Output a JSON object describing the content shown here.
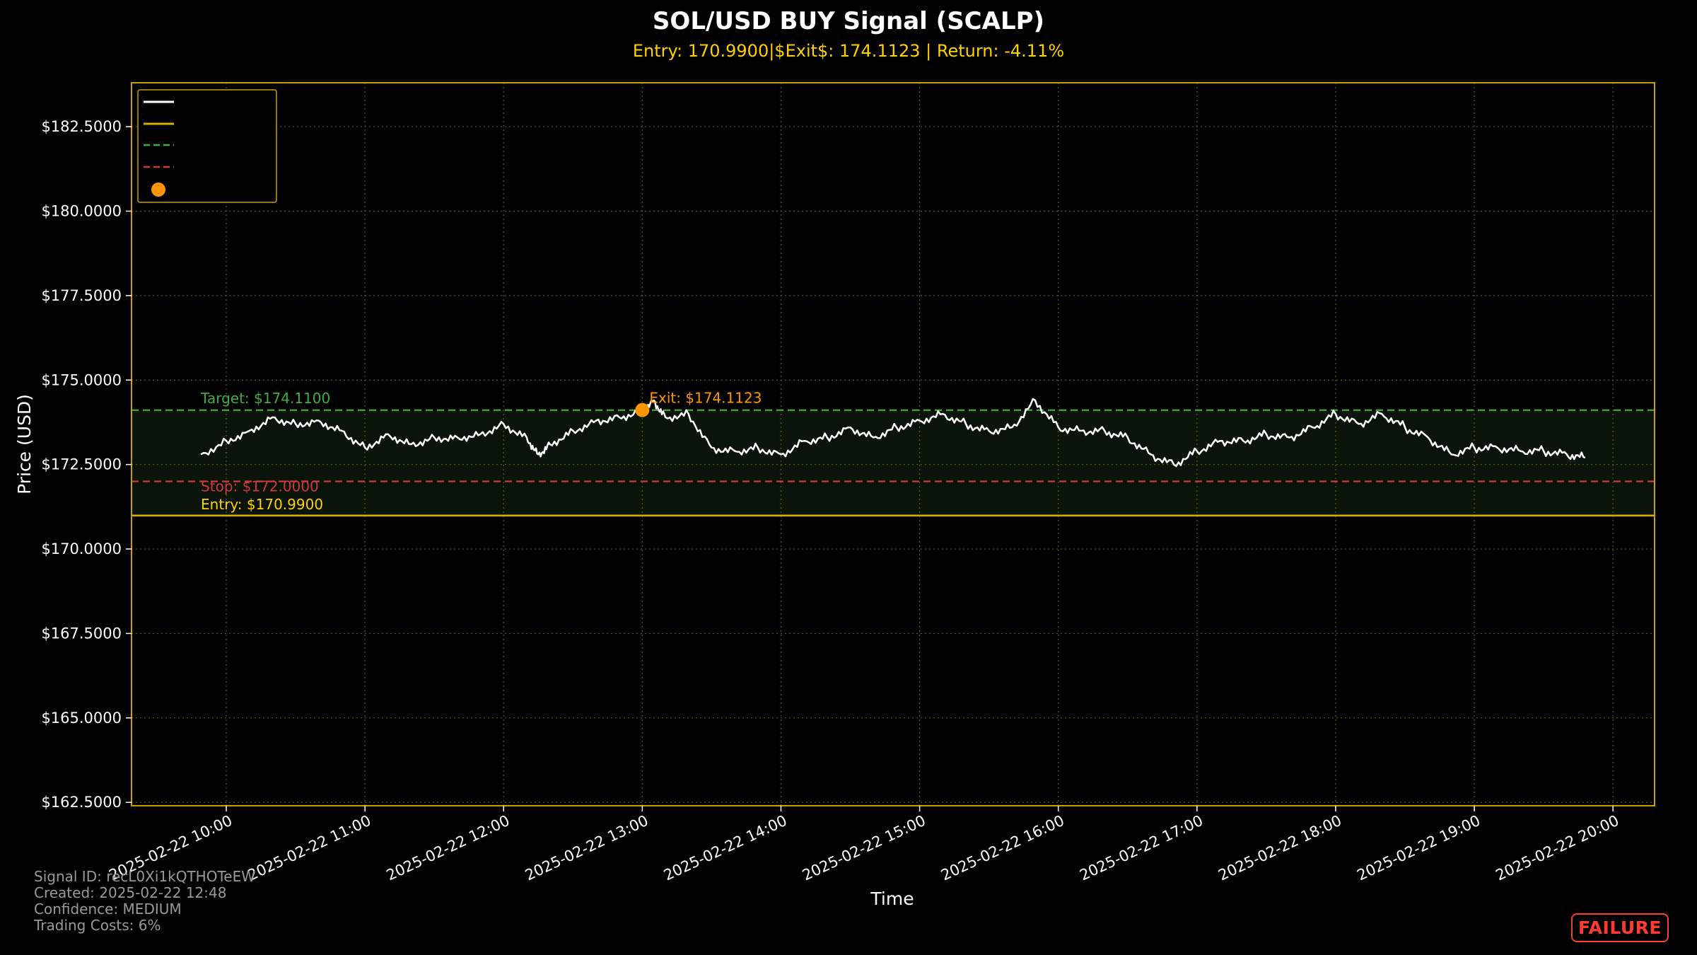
{
  "chart_data": {
    "type": "line",
    "title": "SOL/USD BUY Signal (SCALP)",
    "subtitle": "Entry: 170.9900|$Exit$: 174.1123 | Return: -4.11%",
    "xlabel": "Time",
    "ylabel": "Price (USD)",
    "ylim": [
      162.4,
      183.8
    ],
    "xlim": [
      "2025-02-22 09:19",
      "2025-02-22 20:18"
    ],
    "y_ticks": [
      162.5,
      165.0,
      167.5,
      170.0,
      172.5,
      175.0,
      177.5,
      180.0,
      182.5
    ],
    "y_tick_labels": [
      "$162.5000",
      "$165.0000",
      "$167.5000",
      "$170.0000",
      "$172.5000",
      "$175.0000",
      "$177.5000",
      "$180.0000",
      "$182.5000"
    ],
    "x_ticks": [
      "2025-02-22 10:00",
      "2025-02-22 11:00",
      "2025-02-22 12:00",
      "2025-02-22 13:00",
      "2025-02-22 14:00",
      "2025-02-22 15:00",
      "2025-02-22 16:00",
      "2025-02-22 17:00",
      "2025-02-22 18:00",
      "2025-02-22 19:00",
      "2025-02-22 20:00"
    ],
    "grid": true,
    "legend_position": "top-left",
    "series": [
      {
        "type": "line",
        "x": [
          "2025-02-22 09:49",
          "2025-02-22 10:00",
          "2025-02-22 10:10",
          "2025-02-22 10:20",
          "2025-02-22 10:30",
          "2025-02-22 10:40",
          "2025-02-22 10:50",
          "2025-02-22 11:00",
          "2025-02-22 11:10",
          "2025-02-22 11:20",
          "2025-02-22 11:30",
          "2025-02-22 11:40",
          "2025-02-22 11:50",
          "2025-02-22 12:00",
          "2025-02-22 12:10",
          "2025-02-22 12:15",
          "2025-02-22 12:20",
          "2025-02-22 12:30",
          "2025-02-22 12:40",
          "2025-02-22 12:50",
          "2025-02-22 13:00",
          "2025-02-22 13:05",
          "2025-02-22 13:10",
          "2025-02-22 13:20",
          "2025-02-22 13:30",
          "2025-02-22 13:40",
          "2025-02-22 13:50",
          "2025-02-22 14:00",
          "2025-02-22 14:10",
          "2025-02-22 14:20",
          "2025-02-22 14:30",
          "2025-02-22 14:40",
          "2025-02-22 14:50",
          "2025-02-22 15:00",
          "2025-02-22 15:10",
          "2025-02-22 15:20",
          "2025-02-22 15:30",
          "2025-02-22 15:40",
          "2025-02-22 15:50",
          "2025-02-22 16:00",
          "2025-02-22 16:10",
          "2025-02-22 16:20",
          "2025-02-22 16:30",
          "2025-02-22 16:40",
          "2025-02-22 16:50",
          "2025-02-22 17:00",
          "2025-02-22 17:10",
          "2025-02-22 17:20",
          "2025-02-22 17:30",
          "2025-02-22 17:40",
          "2025-02-22 17:50",
          "2025-02-22 18:00",
          "2025-02-22 18:10",
          "2025-02-22 18:20",
          "2025-02-22 18:30",
          "2025-02-22 18:40",
          "2025-02-22 18:50",
          "2025-02-22 19:00",
          "2025-02-22 19:10",
          "2025-02-22 19:20",
          "2025-02-22 19:30",
          "2025-02-22 19:40",
          "2025-02-22 19:48"
        ],
        "values": [
          172.8,
          173.2,
          173.5,
          173.9,
          173.7,
          173.8,
          173.5,
          173.0,
          173.4,
          173.1,
          173.3,
          173.3,
          173.4,
          173.7,
          173.3,
          172.8,
          173.1,
          173.5,
          173.8,
          173.9,
          174.1,
          174.4,
          173.9,
          174.0,
          173.0,
          172.9,
          173.0,
          172.8,
          173.2,
          173.3,
          173.6,
          173.3,
          173.6,
          173.8,
          174.0,
          173.7,
          173.5,
          173.6,
          174.4,
          173.6,
          173.5,
          173.5,
          173.3,
          172.8,
          172.5,
          172.9,
          173.2,
          173.2,
          173.4,
          173.3,
          173.6,
          174.0,
          173.7,
          174.0,
          173.6,
          173.3,
          172.8,
          173.0,
          173.0,
          172.9,
          172.9,
          172.8,
          172.7
        ]
      },
      {
        "type": "hline",
        "value": 170.99
      },
      {
        "type": "hline",
        "value": 174.11,
        "style": "dashed"
      },
      {
        "type": "hline",
        "value": 172.0,
        "style": "dashed"
      },
      {
        "type": "marker",
        "x": "2025-02-22 13:00",
        "value": 174.1123
      }
    ],
    "profit_zone": [
      170.99,
      174.11
    ],
    "annotations": [
      {
        "text": "Target: $174.1100",
        "x": "2025-02-22 09:49",
        "y": 174.11
      },
      {
        "text": "Stop: $172.0000",
        "x": "2025-02-22 09:49",
        "y": 172.0
      },
      {
        "text": "Entry: $170.9900",
        "x": "2025-02-22 09:49",
        "y": 170.99
      },
      {
        "text": "Exit: $174.1123",
        "x": "2025-02-22 13:00",
        "y": 174.1123
      }
    ],
    "colors": {
      "background": "#000000",
      "frame": "#c8a000",
      "grid": "#5a5a14",
      "price": "#ffffff",
      "entry": "#d4b000",
      "target": "#3fae3f",
      "stop": "#d03a3a",
      "exit": "#ff9500",
      "zone": "#0b140b"
    }
  },
  "footer": {
    "signal_id": "Signal ID: recL0Xi1kQTHOTeEW",
    "created": "Created: 2025-02-22 12:48",
    "confidence": "Confidence: MEDIUM",
    "costs": "Trading Costs: 6%"
  },
  "badge": "FAILURE"
}
